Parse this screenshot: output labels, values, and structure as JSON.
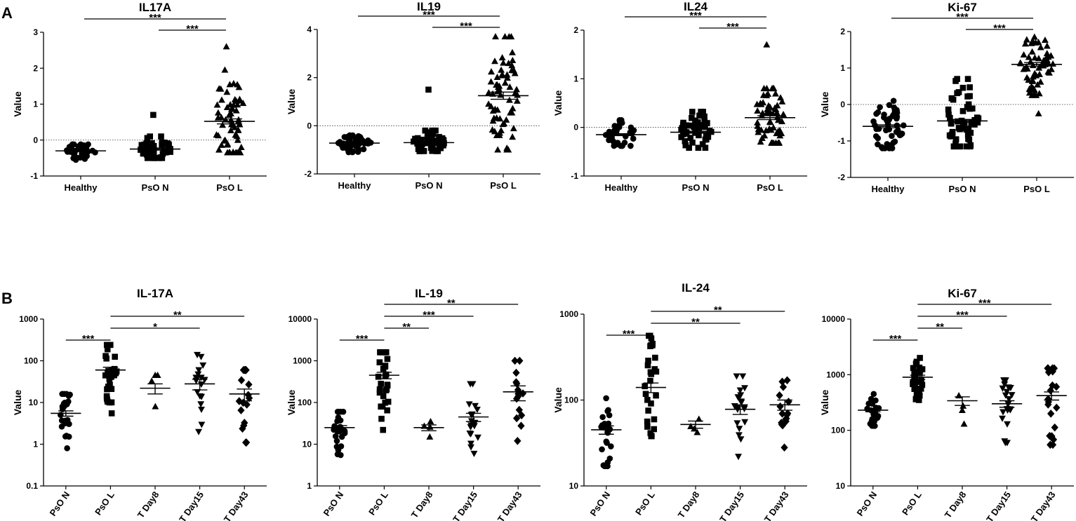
{
  "panel_labels": [
    "A",
    "B"
  ],
  "chart_data": [
    {
      "type": "scatter",
      "panel": "A",
      "title": "IL17A",
      "ylabel": "Value",
      "scale": "linear",
      "ylim": [
        -1,
        3
      ],
      "yticks": [
        -1,
        0,
        1,
        2,
        3
      ],
      "ytick_labels": [
        "-1",
        "0",
        "1",
        "2",
        "3"
      ],
      "categories": [
        "Healthy",
        "PsO N",
        "PsO L"
      ],
      "reference_line": 0,
      "groups": [
        {
          "name": "Healthy",
          "marker": "circle",
          "n": 38,
          "mean": -0.3,
          "sem": 0.02,
          "min": -0.55,
          "max": -0.12,
          "outliers": []
        },
        {
          "name": "PsO N",
          "marker": "square",
          "n": 45,
          "mean": -0.25,
          "sem": 0.03,
          "min": -0.5,
          "max": 0.1,
          "outliers": [
            0.7
          ]
        },
        {
          "name": "PsO L",
          "marker": "triangle",
          "n": 60,
          "mean": 0.52,
          "sem": 0.07,
          "min": -0.35,
          "max": 1.95,
          "outliers": [
            2.6
          ]
        }
      ],
      "comparisons": [
        {
          "from": 0,
          "to": 2,
          "label": "***"
        },
        {
          "from": 1,
          "to": 2,
          "label": "***"
        }
      ]
    },
    {
      "type": "scatter",
      "panel": "A",
      "title": "IL19",
      "ylabel": "Value",
      "scale": "linear",
      "ylim": [
        -2,
        4
      ],
      "yticks": [
        -2,
        0,
        2,
        4
      ],
      "ytick_labels": [
        "-2",
        "0",
        "2",
        "4"
      ],
      "categories": [
        "Healthy",
        "PsO N",
        "PsO L"
      ],
      "reference_line": 0,
      "groups": [
        {
          "name": "Healthy",
          "marker": "circle",
          "n": 45,
          "mean": -0.72,
          "sem": 0.03,
          "min": -1.1,
          "max": -0.4,
          "outliers": []
        },
        {
          "name": "PsO N",
          "marker": "square",
          "n": 50,
          "mean": -0.7,
          "sem": 0.04,
          "min": -1.05,
          "max": -0.2,
          "outliers": [
            1.5
          ]
        },
        {
          "name": "PsO L",
          "marker": "triangle",
          "n": 65,
          "mean": 1.25,
          "sem": 0.15,
          "min": -1.0,
          "max": 3.7,
          "outliers": []
        }
      ],
      "comparisons": [
        {
          "from": 0,
          "to": 2,
          "label": "***"
        },
        {
          "from": 1,
          "to": 2,
          "label": "***"
        }
      ]
    },
    {
      "type": "scatter",
      "panel": "A",
      "title": "IL24",
      "ylabel": "Value",
      "scale": "linear",
      "ylim": [
        -1,
        2
      ],
      "yticks": [
        -1,
        0,
        1,
        2
      ],
      "ytick_labels": [
        "-1",
        "0",
        "1",
        "2"
      ],
      "categories": [
        "Healthy",
        "PsO N",
        "PsO L"
      ],
      "reference_line": 0,
      "groups": [
        {
          "name": "Healthy",
          "marker": "circle",
          "n": 40,
          "mean": -0.15,
          "sem": 0.02,
          "min": -0.38,
          "max": 0.15,
          "outliers": []
        },
        {
          "name": "PsO N",
          "marker": "square",
          "n": 50,
          "mean": -0.1,
          "sem": 0.02,
          "min": -0.42,
          "max": 0.32,
          "outliers": []
        },
        {
          "name": "PsO L",
          "marker": "triangle",
          "n": 60,
          "mean": 0.2,
          "sem": 0.04,
          "min": -0.32,
          "max": 0.8,
          "outliers": [
            1.7
          ]
        }
      ],
      "comparisons": [
        {
          "from": 0,
          "to": 2,
          "label": "***"
        },
        {
          "from": 1,
          "to": 2,
          "label": "***"
        }
      ]
    },
    {
      "type": "scatter",
      "panel": "A",
      "title": "Ki-67",
      "ylabel": "Value",
      "scale": "linear",
      "ylim": [
        -2,
        2
      ],
      "yticks": [
        -2,
        -1,
        0,
        1,
        2
      ],
      "ytick_labels": [
        "-2",
        "-1",
        "0",
        "1",
        "2"
      ],
      "categories": [
        "Healthy",
        "PsO N",
        "PsO L"
      ],
      "reference_line": 0,
      "groups": [
        {
          "name": "Healthy",
          "marker": "circle",
          "n": 50,
          "mean": -0.6,
          "sem": 0.04,
          "min": -1.2,
          "max": 0.1,
          "outliers": []
        },
        {
          "name": "PsO N",
          "marker": "square",
          "n": 55,
          "mean": -0.45,
          "sem": 0.04,
          "min": -1.15,
          "max": 0.7,
          "outliers": []
        },
        {
          "name": "PsO L",
          "marker": "triangle",
          "n": 60,
          "mean": 1.1,
          "sem": 0.05,
          "min": 0.25,
          "max": 1.85,
          "outliers": [
            -0.25
          ]
        }
      ],
      "comparisons": [
        {
          "from": 0,
          "to": 2,
          "label": "***"
        },
        {
          "from": 1,
          "to": 2,
          "label": "***"
        }
      ]
    },
    {
      "type": "scatter",
      "panel": "B",
      "title": "IL-17A",
      "ylabel": "Value",
      "scale": "log",
      "ylim": [
        0.1,
        1000
      ],
      "yticks": [
        0.1,
        1,
        10,
        100,
        1000
      ],
      "ytick_labels": [
        "0.1",
        "1",
        "10",
        "100",
        "1000"
      ],
      "categories": [
        "PsO N",
        "PsO L",
        "T Day8",
        "T Day15",
        "T Day43"
      ],
      "groups": [
        {
          "name": "PsO N",
          "marker": "circle",
          "n": 25,
          "mean": 5.5,
          "sem": 0.8,
          "min": 0.8,
          "max": 16,
          "outliers": []
        },
        {
          "name": "PsO L",
          "marker": "square",
          "n": 28,
          "mean": 60,
          "sem": 10,
          "min": 5.5,
          "max": 240,
          "outliers": []
        },
        {
          "name": "T Day8",
          "marker": "triangle",
          "n": 4,
          "mean": 22,
          "sem": 6,
          "min": 8,
          "max": 45,
          "outliers": []
        },
        {
          "name": "T Day15",
          "marker": "triangle-down",
          "n": 18,
          "mean": 28,
          "sem": 8,
          "min": 2,
          "max": 140,
          "outliers": []
        },
        {
          "name": "T Day43",
          "marker": "diamond",
          "n": 18,
          "mean": 16,
          "sem": 5,
          "min": 1.1,
          "max": 60,
          "outliers": []
        }
      ],
      "comparisons": [
        {
          "from": 0,
          "to": 1,
          "label": "***"
        },
        {
          "from": 1,
          "to": 3,
          "label": "*"
        },
        {
          "from": 1,
          "to": 4,
          "label": "**"
        }
      ]
    },
    {
      "type": "scatter",
      "panel": "B",
      "title": "IL-19",
      "ylabel": "Value",
      "scale": "log",
      "ylim": [
        1,
        10000
      ],
      "yticks": [
        1,
        10,
        100,
        1000,
        10000
      ],
      "ytick_labels": [
        "1",
        "10",
        "100",
        "1000",
        "10000"
      ],
      "categories": [
        "PsO N",
        "PsO L",
        "T Day8",
        "T Day15",
        "T Day43"
      ],
      "groups": [
        {
          "name": "PsO N",
          "marker": "circle",
          "n": 25,
          "mean": 25,
          "sem": 3,
          "min": 5.5,
          "max": 60,
          "outliers": []
        },
        {
          "name": "PsO L",
          "marker": "square",
          "n": 28,
          "mean": 450,
          "sem": 80,
          "min": 22,
          "max": 1600,
          "outliers": []
        },
        {
          "name": "T Day8",
          "marker": "triangle",
          "n": 4,
          "mean": 25,
          "sem": 4,
          "min": 15,
          "max": 35,
          "outliers": []
        },
        {
          "name": "T Day15",
          "marker": "triangle-down",
          "n": 18,
          "mean": 45,
          "sem": 10,
          "min": 6,
          "max": 280,
          "outliers": []
        },
        {
          "name": "T Day43",
          "marker": "diamond",
          "n": 16,
          "mean": 180,
          "sem": 70,
          "min": 12,
          "max": 1000,
          "outliers": []
        }
      ],
      "comparisons": [
        {
          "from": 0,
          "to": 1,
          "label": "***"
        },
        {
          "from": 1,
          "to": 2,
          "label": "**"
        },
        {
          "from": 1,
          "to": 3,
          "label": "***"
        },
        {
          "from": 1,
          "to": 4,
          "label": "**"
        }
      ]
    },
    {
      "type": "scatter",
      "panel": "B",
      "title": "IL-24",
      "ylabel": "Value",
      "scale": "log",
      "ylim": [
        10,
        1000
      ],
      "yticks": [
        10,
        100,
        1000
      ],
      "ytick_labels": [
        "10",
        "100",
        "1000"
      ],
      "categories": [
        "PsO N",
        "PsO L",
        "T Day8",
        "T Day15",
        "T Day43"
      ],
      "groups": [
        {
          "name": "PsO N",
          "marker": "circle",
          "n": 25,
          "mean": 45,
          "sem": 5,
          "min": 17,
          "max": 105,
          "outliers": []
        },
        {
          "name": "PsO L",
          "marker": "square",
          "n": 28,
          "mean": 140,
          "sem": 18,
          "min": 38,
          "max": 560,
          "outliers": []
        },
        {
          "name": "T Day8",
          "marker": "triangle",
          "n": 4,
          "mean": 52,
          "sem": 5,
          "min": 42,
          "max": 60,
          "outliers": []
        },
        {
          "name": "T Day15",
          "marker": "triangle-down",
          "n": 20,
          "mean": 78,
          "sem": 10,
          "min": 22,
          "max": 190,
          "outliers": []
        },
        {
          "name": "T Day43",
          "marker": "diamond",
          "n": 16,
          "mean": 88,
          "sem": 12,
          "min": 28,
          "max": 170,
          "outliers": []
        }
      ],
      "comparisons": [
        {
          "from": 0,
          "to": 1,
          "label": "***"
        },
        {
          "from": 1,
          "to": 3,
          "label": "**"
        },
        {
          "from": 1,
          "to": 4,
          "label": "**"
        }
      ]
    },
    {
      "type": "scatter",
      "panel": "B",
      "title": "Ki-67",
      "ylabel": "Value",
      "scale": "log",
      "ylim": [
        10,
        10000
      ],
      "yticks": [
        10,
        100,
        1000,
        10000
      ],
      "ytick_labels": [
        "10",
        "100",
        "1000",
        "10000"
      ],
      "categories": [
        "PsO N",
        "PsO L",
        "T Day8",
        "T Day15",
        "T Day43"
      ],
      "groups": [
        {
          "name": "PsO N",
          "marker": "circle",
          "n": 28,
          "mean": 230,
          "sem": 15,
          "min": 120,
          "max": 450,
          "outliers": []
        },
        {
          "name": "PsO L",
          "marker": "square",
          "n": 30,
          "mean": 900,
          "sem": 80,
          "min": 350,
          "max": 2000,
          "outliers": []
        },
        {
          "name": "T Day8",
          "marker": "triangle",
          "n": 4,
          "mean": 340,
          "sem": 60,
          "min": 130,
          "max": 420,
          "outliers": []
        },
        {
          "name": "T Day15",
          "marker": "triangle-down",
          "n": 22,
          "mean": 300,
          "sem": 40,
          "min": 60,
          "max": 800,
          "outliers": []
        },
        {
          "name": "T Day43",
          "marker": "diamond",
          "n": 20,
          "mean": 420,
          "sem": 70,
          "min": 55,
          "max": 1300,
          "outliers": []
        }
      ],
      "comparisons": [
        {
          "from": 0,
          "to": 1,
          "label": "***"
        },
        {
          "from": 1,
          "to": 2,
          "label": "**"
        },
        {
          "from": 1,
          "to": 3,
          "label": "***"
        },
        {
          "from": 1,
          "to": 4,
          "label": "***"
        }
      ]
    }
  ]
}
